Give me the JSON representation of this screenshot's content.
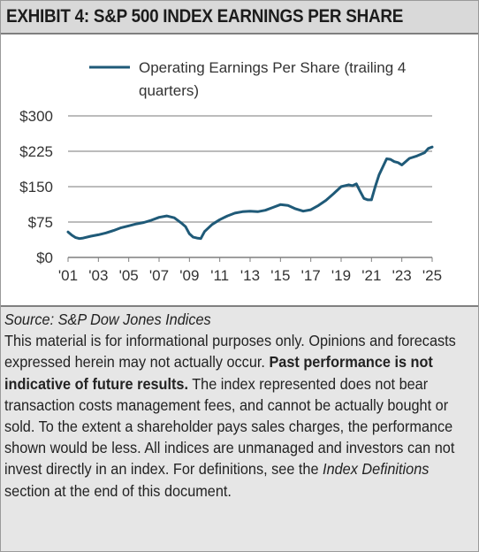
{
  "title": "EXHIBIT 4: S&P 500 INDEX EARNINGS PER SHARE",
  "legend": {
    "label_line1": "Operating Earnings Per Share (trailing 4",
    "label_line2": "quarters)",
    "color": "#1f5a78"
  },
  "colors": {
    "line": "#1f5a78",
    "grid": "#a6a6a6",
    "header_bg": "#d9d9d9",
    "notes_bg": "#e6e6e6"
  },
  "chart_data": {
    "type": "line",
    "title": "",
    "xlabel": "",
    "ylabel": "",
    "ylim": [
      0,
      300
    ],
    "xlim": [
      2001,
      2025
    ],
    "grid": "horizontal",
    "legend_position": "top",
    "y_ticks": [
      0,
      75,
      150,
      225,
      300
    ],
    "y_tick_labels": [
      "$0",
      "$75",
      "$150",
      "$225",
      "$300"
    ],
    "x_ticks": [
      2001,
      2003,
      2005,
      2007,
      2009,
      2011,
      2013,
      2015,
      2017,
      2019,
      2021,
      2023,
      2025
    ],
    "x_tick_labels": [
      "'01",
      "'03",
      "'05",
      "'07",
      "'09",
      "'11",
      "'13",
      "'15",
      "'17",
      "'19",
      "'21",
      "'23",
      "'25"
    ],
    "series": [
      {
        "name": "Operating Earnings Per Share (trailing 4 quarters)",
        "x": [
          2001.0,
          2001.25,
          2001.5,
          2001.75,
          2002.0,
          2002.5,
          2003.0,
          2003.5,
          2004.0,
          2004.5,
          2005.0,
          2005.5,
          2006.0,
          2006.5,
          2007.0,
          2007.5,
          2008.0,
          2008.5,
          2008.75,
          2009.0,
          2009.25,
          2009.5,
          2009.75,
          2010.0,
          2010.5,
          2011.0,
          2011.5,
          2012.0,
          2012.5,
          2013.0,
          2013.5,
          2014.0,
          2014.5,
          2015.0,
          2015.5,
          2016.0,
          2016.5,
          2017.0,
          2017.5,
          2018.0,
          2018.5,
          2019.0,
          2019.25,
          2019.5,
          2019.75,
          2020.0,
          2020.25,
          2020.5,
          2020.75,
          2021.0,
          2021.25,
          2021.5,
          2021.75,
          2022.0,
          2022.25,
          2022.5,
          2022.75,
          2023.0,
          2023.5,
          2024.0,
          2024.5,
          2024.75,
          2025.0
        ],
        "y": [
          54,
          47,
          42,
          40,
          41,
          45,
          48,
          52,
          57,
          63,
          67,
          71,
          74,
          79,
          85,
          88,
          84,
          72,
          65,
          50,
          43,
          41,
          40,
          55,
          70,
          80,
          88,
          94,
          97,
          98,
          97,
          100,
          106,
          112,
          110,
          103,
          98,
          101,
          110,
          121,
          135,
          150,
          152,
          154,
          152,
          156,
          140,
          125,
          122,
          122,
          150,
          175,
          192,
          209,
          208,
          203,
          201,
          196,
          210,
          215,
          222,
          231,
          234
        ]
      }
    ]
  },
  "notes": {
    "source": "Source: S&P Dow Jones Indices",
    "body_1": "This material is for informational purposes only. Opinions and forecasts expressed herein may not actually occur. ",
    "body_bold": "Past performance is not indicative of future results.",
    "body_2": " The index represented does not bear transaction costs management fees, and cannot be actually bought or sold. To the extent a shareholder pays sales charges, the performance shown would be less. All indices are unmanaged and investors can not invest directly in an index. For definitions, see the ",
    "body_italic": "Index Definitions",
    "body_3": " section at the end of this document."
  }
}
